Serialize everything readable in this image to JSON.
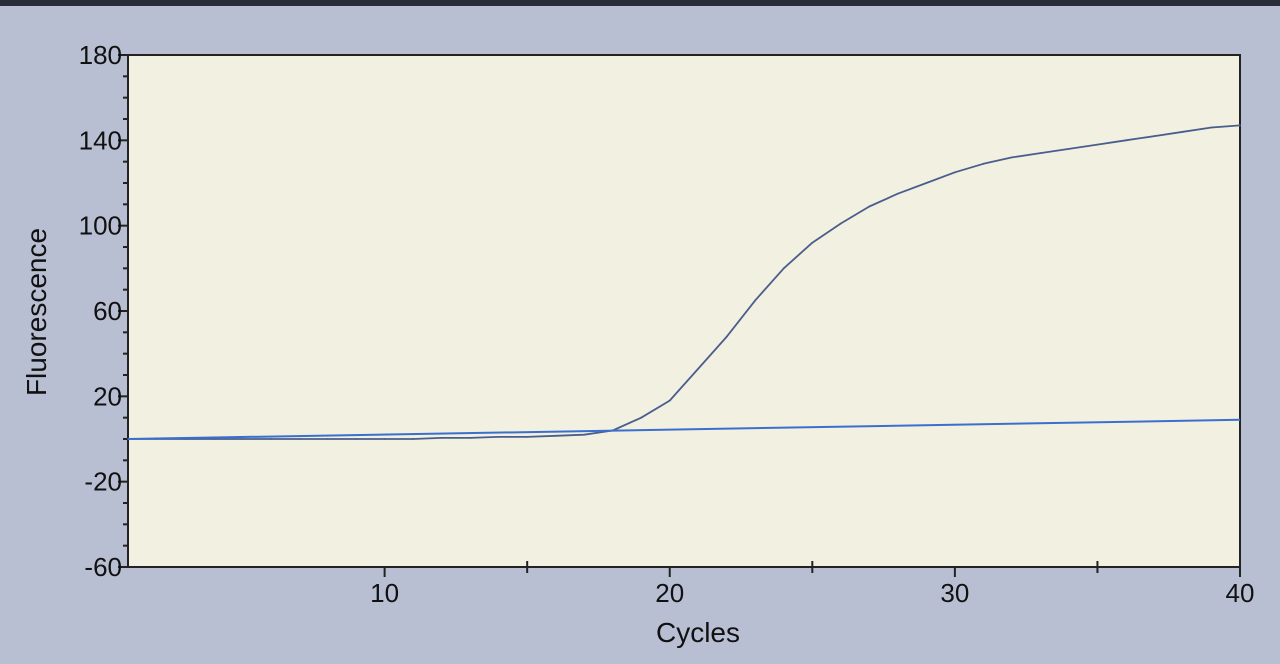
{
  "chart_data": {
    "type": "line",
    "xlabel": "Cycles",
    "ylabel": "Fluorescence",
    "xlim": [
      1,
      40
    ],
    "ylim": [
      -60,
      180
    ],
    "x_ticks": [
      10,
      20,
      30,
      40
    ],
    "x_minor_ticks": [
      15,
      25,
      35
    ],
    "y_ticks": [
      -60,
      -20,
      20,
      60,
      100,
      140,
      180
    ],
    "grid": false,
    "colors": {
      "plot_background": "#f2f0e0",
      "amplification_curve": "#4a5e8e",
      "baseline": "#3a6fd0",
      "page_background": "#b9bfd3"
    },
    "series": [
      {
        "x": [
          1,
          2,
          3,
          4,
          5,
          6,
          7,
          8,
          9,
          10,
          11,
          12,
          13,
          14,
          15,
          16,
          17,
          18,
          19,
          20,
          21,
          22,
          23,
          24,
          25,
          26,
          27,
          28,
          29,
          30,
          31,
          32,
          33,
          34,
          35,
          36,
          37,
          38,
          39,
          40
        ],
        "y": [
          0,
          0,
          0,
          0,
          0,
          0,
          0,
          0,
          0,
          0,
          0,
          0.5,
          0.5,
          1,
          1,
          1.5,
          2,
          4,
          10,
          18,
          33,
          48,
          65,
          80,
          92,
          101,
          109,
          115,
          120,
          125,
          129,
          132,
          134,
          136,
          138,
          140,
          142,
          144,
          146,
          147
        ]
      },
      {
        "x": [
          1,
          40
        ],
        "y": [
          0,
          9
        ]
      }
    ]
  }
}
